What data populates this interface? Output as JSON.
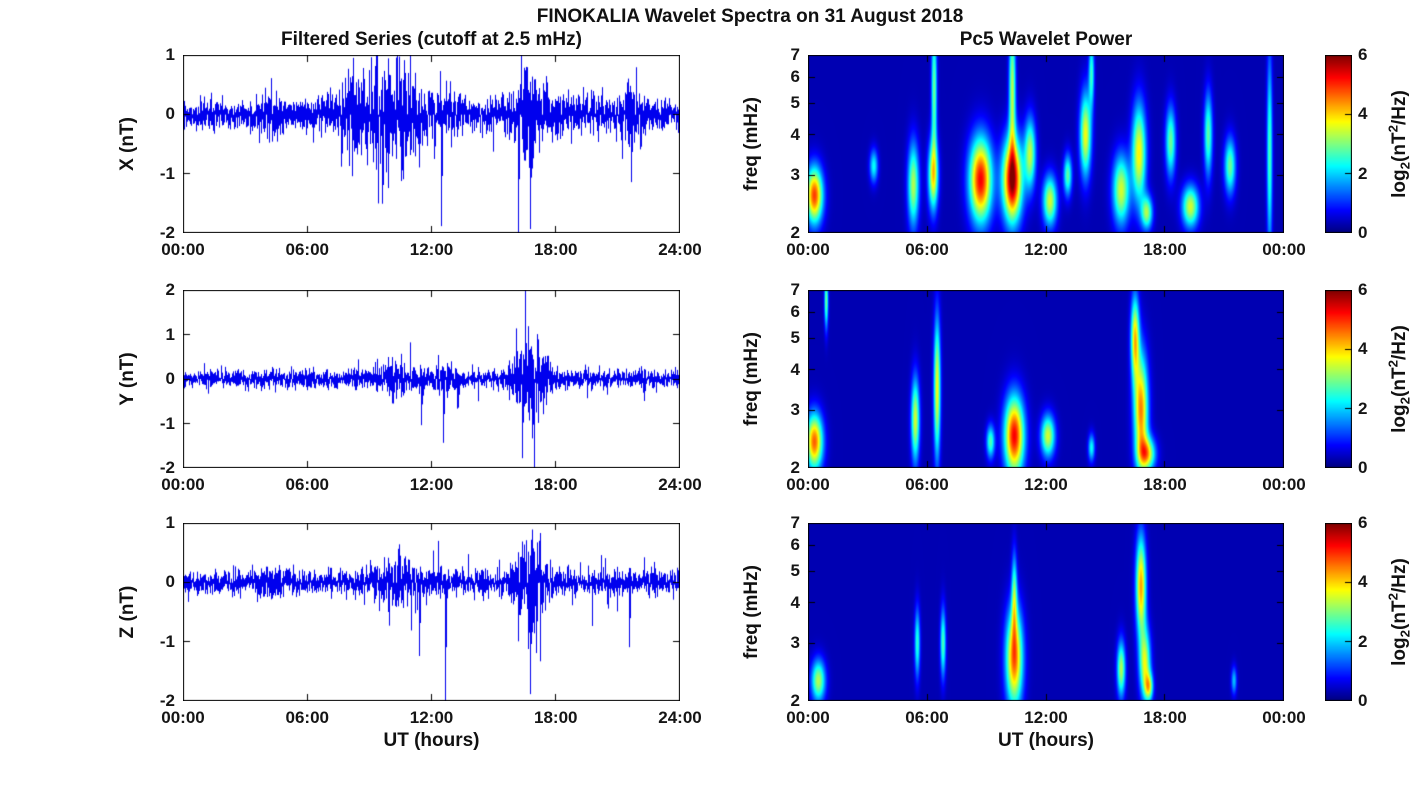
{
  "figure": {
    "title": "FINOKALIA Wavelet Spectra on 31 August 2018",
    "background": "#ffffff"
  },
  "left_column": {
    "title": "Filtered Series (cutoff at 2.5 mHz)",
    "x_label": "UT (hours)",
    "x_tick_labels": [
      "00:00",
      "06:00",
      "12:00",
      "18:00",
      "24:00"
    ]
  },
  "right_column": {
    "title": "Pc5 Wavelet Power",
    "x_label": "UT (hours)",
    "x_tick_labels": [
      "00:00",
      "06:00",
      "12:00",
      "18:00",
      "00:00"
    ],
    "y_label": "freq (mHz)",
    "freq_ticks": [
      2,
      3,
      4,
      5,
      6,
      7
    ],
    "freq_range_mhz": [
      2,
      7
    ]
  },
  "colorbar": {
    "ticks": [
      "0",
      "2",
      "4",
      "6"
    ],
    "range": [
      0,
      6
    ],
    "colormap": "jet",
    "label_parts": {
      "prefix": "log",
      "sub": "2",
      "mid": "(nT",
      "sup": "2",
      "suffix": "/Hz)"
    }
  },
  "series_color": "#0000ee",
  "chart_data": [
    {
      "id": "x-filtered-series",
      "type": "line",
      "ylabel": "X (nT)",
      "xlabel": "UT (hours)",
      "ylim": [
        -2,
        1
      ],
      "yticks": [
        1,
        0,
        -1,
        -2
      ],
      "x_range_hours": [
        0,
        24
      ],
      "noise_base": 0.12,
      "bursts": [
        {
          "t": 4.2,
          "w": 0.6,
          "a": 0.08
        },
        {
          "t": 8.7,
          "w": 1.6,
          "a": 0.22
        },
        {
          "t": 10.5,
          "w": 1.2,
          "a": 0.28
        },
        {
          "t": 13.0,
          "w": 0.8,
          "a": 0.1
        },
        {
          "t": 16.6,
          "w": 0.9,
          "a": 0.3
        },
        {
          "t": 19.0,
          "w": 2.0,
          "a": 0.06
        },
        {
          "t": 21.6,
          "w": 0.5,
          "a": 0.18
        }
      ],
      "spikes": [
        {
          "t": 8.6,
          "a": 0.55
        },
        {
          "t": 9.05,
          "a": -0.5
        },
        {
          "t": 10.6,
          "a": -0.95
        },
        {
          "t": 10.9,
          "a": 0.6
        },
        {
          "t": 11.4,
          "a": -0.9
        },
        {
          "t": 12.5,
          "a": -1.9
        },
        {
          "t": 16.2,
          "a": -2.0
        },
        {
          "t": 16.5,
          "a": 0.8
        },
        {
          "t": 16.8,
          "a": -1.95
        },
        {
          "t": 17.0,
          "a": 0.6
        },
        {
          "t": 21.5,
          "a": 0.55
        },
        {
          "t": 21.7,
          "a": -1.15
        }
      ]
    },
    {
      "id": "y-filtered-series",
      "type": "line",
      "ylabel": "Y (nT)",
      "xlabel": "UT (hours)",
      "ylim": [
        -2,
        2
      ],
      "yticks": [
        2,
        1,
        0,
        -1,
        -2
      ],
      "x_range_hours": [
        0,
        24
      ],
      "noise_base": 0.1,
      "bursts": [
        {
          "t": 10.4,
          "w": 1.0,
          "a": 0.12
        },
        {
          "t": 12.6,
          "w": 0.6,
          "a": 0.08
        },
        {
          "t": 16.8,
          "w": 0.9,
          "a": 0.35
        }
      ],
      "spikes": [
        {
          "t": 9.9,
          "a": 0.5
        },
        {
          "t": 10.3,
          "a": -0.45
        },
        {
          "t": 11.5,
          "a": -1.05
        },
        {
          "t": 12.6,
          "a": -1.45
        },
        {
          "t": 13.3,
          "a": -0.65
        },
        {
          "t": 16.1,
          "a": 1.15
        },
        {
          "t": 16.4,
          "a": -1.8
        },
        {
          "t": 16.7,
          "a": 1.2
        },
        {
          "t": 16.9,
          "a": -1.35
        },
        {
          "t": 17.2,
          "a": 0.9
        },
        {
          "t": 17.4,
          "a": -0.8
        },
        {
          "t": 22.3,
          "a": -0.5
        }
      ]
    },
    {
      "id": "z-filtered-series",
      "type": "line",
      "ylabel": "Z (nT)",
      "xlabel": "UT (hours)",
      "ylim": [
        -2,
        1
      ],
      "yticks": [
        1,
        0,
        -1,
        -2
      ],
      "x_range_hours": [
        0,
        24
      ],
      "noise_base": 0.1,
      "bursts": [
        {
          "t": 4.0,
          "w": 0.5,
          "a": 0.05
        },
        {
          "t": 10.3,
          "w": 1.2,
          "a": 0.15
        },
        {
          "t": 16.8,
          "w": 0.8,
          "a": 0.28
        }
      ],
      "spikes": [
        {
          "t": 9.9,
          "a": -0.5
        },
        {
          "t": 10.4,
          "a": 0.4
        },
        {
          "t": 11.4,
          "a": -1.25
        },
        {
          "t": 12.7,
          "a": -2.0
        },
        {
          "t": 16.2,
          "a": -1.0
        },
        {
          "t": 16.5,
          "a": 0.65
        },
        {
          "t": 16.8,
          "a": -1.9
        },
        {
          "t": 17.1,
          "a": -1.2
        },
        {
          "t": 21.6,
          "a": -1.1
        }
      ]
    },
    {
      "id": "x-wavelet-power",
      "type": "heatmap",
      "ylabel": "freq (mHz)",
      "xlabel": "UT (hours)",
      "freq_range": [
        2,
        7
      ],
      "power_range": [
        0,
        6
      ],
      "background_power": 0.3,
      "events": [
        {
          "t": 0.3,
          "f": 2.6,
          "p": 4.6,
          "st": 0.3,
          "sf": 0.2
        },
        {
          "t": 3.3,
          "f": 3.2,
          "p": 2.0,
          "st": 0.15,
          "sf": 0.12
        },
        {
          "t": 5.3,
          "f": 2.8,
          "p": 3.0,
          "st": 0.2,
          "sf": 0.3
        },
        {
          "t": 6.3,
          "f": 3.0,
          "p": 3.4,
          "st": 0.18,
          "sf": 0.25
        },
        {
          "t": 6.35,
          "f": 5.5,
          "p": 2.6,
          "st": 0.1,
          "sf": 0.5
        },
        {
          "t": 8.7,
          "f": 2.9,
          "p": 5.0,
          "st": 0.4,
          "sf": 0.3
        },
        {
          "t": 10.3,
          "f": 2.9,
          "p": 5.5,
          "st": 0.35,
          "sf": 0.3
        },
        {
          "t": 10.3,
          "f": 5.5,
          "p": 3.0,
          "st": 0.12,
          "sf": 0.5
        },
        {
          "t": 11.2,
          "f": 3.5,
          "p": 3.0,
          "st": 0.2,
          "sf": 0.25
        },
        {
          "t": 12.2,
          "f": 2.5,
          "p": 3.2,
          "st": 0.25,
          "sf": 0.18
        },
        {
          "t": 13.1,
          "f": 3.0,
          "p": 2.5,
          "st": 0.15,
          "sf": 0.15
        },
        {
          "t": 14.0,
          "f": 4.0,
          "p": 3.4,
          "st": 0.2,
          "sf": 0.3
        },
        {
          "t": 14.3,
          "f": 6.2,
          "p": 2.2,
          "st": 0.1,
          "sf": 0.25
        },
        {
          "t": 15.8,
          "f": 2.7,
          "p": 3.2,
          "st": 0.3,
          "sf": 0.25
        },
        {
          "t": 16.7,
          "f": 3.5,
          "p": 3.5,
          "st": 0.25,
          "sf": 0.35
        },
        {
          "t": 17.1,
          "f": 2.3,
          "p": 2.8,
          "st": 0.2,
          "sf": 0.12
        },
        {
          "t": 18.3,
          "f": 3.8,
          "p": 2.6,
          "st": 0.18,
          "sf": 0.25
        },
        {
          "t": 19.3,
          "f": 2.4,
          "p": 3.2,
          "st": 0.3,
          "sf": 0.15
        },
        {
          "t": 20.2,
          "f": 4.0,
          "p": 2.5,
          "st": 0.15,
          "sf": 0.3
        },
        {
          "t": 21.3,
          "f": 3.2,
          "p": 2.6,
          "st": 0.2,
          "sf": 0.2
        },
        {
          "t": 23.3,
          "f": 3.5,
          "p": 2.4,
          "st": 0.1,
          "sf": 0.7
        }
      ]
    },
    {
      "id": "y-wavelet-power",
      "type": "heatmap",
      "ylabel": "freq (mHz)",
      "xlabel": "UT (hours)",
      "freq_range": [
        2,
        7
      ],
      "power_range": [
        0,
        6
      ],
      "background_power": 0.3,
      "events": [
        {
          "t": 0.3,
          "f": 2.4,
          "p": 4.4,
          "st": 0.3,
          "sf": 0.2
        },
        {
          "t": 0.9,
          "f": 6.5,
          "p": 2.6,
          "st": 0.07,
          "sf": 0.2
        },
        {
          "t": 5.4,
          "f": 2.8,
          "p": 3.2,
          "st": 0.15,
          "sf": 0.3
        },
        {
          "t": 6.5,
          "f": 3.5,
          "p": 3.4,
          "st": 0.12,
          "sf": 0.5
        },
        {
          "t": 9.2,
          "f": 2.4,
          "p": 2.4,
          "st": 0.15,
          "sf": 0.12
        },
        {
          "t": 10.4,
          "f": 2.5,
          "p": 5.0,
          "st": 0.35,
          "sf": 0.28
        },
        {
          "t": 12.1,
          "f": 2.5,
          "p": 3.2,
          "st": 0.25,
          "sf": 0.15
        },
        {
          "t": 14.3,
          "f": 2.3,
          "p": 2.0,
          "st": 0.12,
          "sf": 0.1
        },
        {
          "t": 16.5,
          "f": 5.0,
          "p": 3.6,
          "st": 0.15,
          "sf": 0.3
        },
        {
          "t": 16.8,
          "f": 3.0,
          "p": 4.2,
          "st": 0.25,
          "sf": 0.4
        },
        {
          "t": 17.1,
          "f": 2.2,
          "p": 3.4,
          "st": 0.3,
          "sf": 0.12
        }
      ]
    },
    {
      "id": "z-wavelet-power",
      "type": "heatmap",
      "ylabel": "freq (mHz)",
      "xlabel": "UT (hours)",
      "freq_range": [
        2,
        7
      ],
      "power_range": [
        0,
        6
      ],
      "background_power": 0.3,
      "events": [
        {
          "t": 0.5,
          "f": 2.3,
          "p": 3.0,
          "st": 0.25,
          "sf": 0.15
        },
        {
          "t": 5.5,
          "f": 3.0,
          "p": 2.2,
          "st": 0.1,
          "sf": 0.25
        },
        {
          "t": 6.8,
          "f": 3.0,
          "p": 2.4,
          "st": 0.1,
          "sf": 0.25
        },
        {
          "t": 10.4,
          "f": 2.7,
          "p": 4.4,
          "st": 0.3,
          "sf": 0.35
        },
        {
          "t": 10.4,
          "f": 4.2,
          "p": 2.4,
          "st": 0.1,
          "sf": 0.3
        },
        {
          "t": 15.8,
          "f": 2.5,
          "p": 3.0,
          "st": 0.15,
          "sf": 0.2
        },
        {
          "t": 16.8,
          "f": 4.5,
          "p": 4.0,
          "st": 0.18,
          "sf": 0.35
        },
        {
          "t": 17.0,
          "f": 2.6,
          "p": 3.2,
          "st": 0.2,
          "sf": 0.25
        },
        {
          "t": 17.2,
          "f": 2.2,
          "p": 2.8,
          "st": 0.15,
          "sf": 0.1
        },
        {
          "t": 21.5,
          "f": 2.3,
          "p": 1.6,
          "st": 0.1,
          "sf": 0.1
        }
      ]
    }
  ]
}
